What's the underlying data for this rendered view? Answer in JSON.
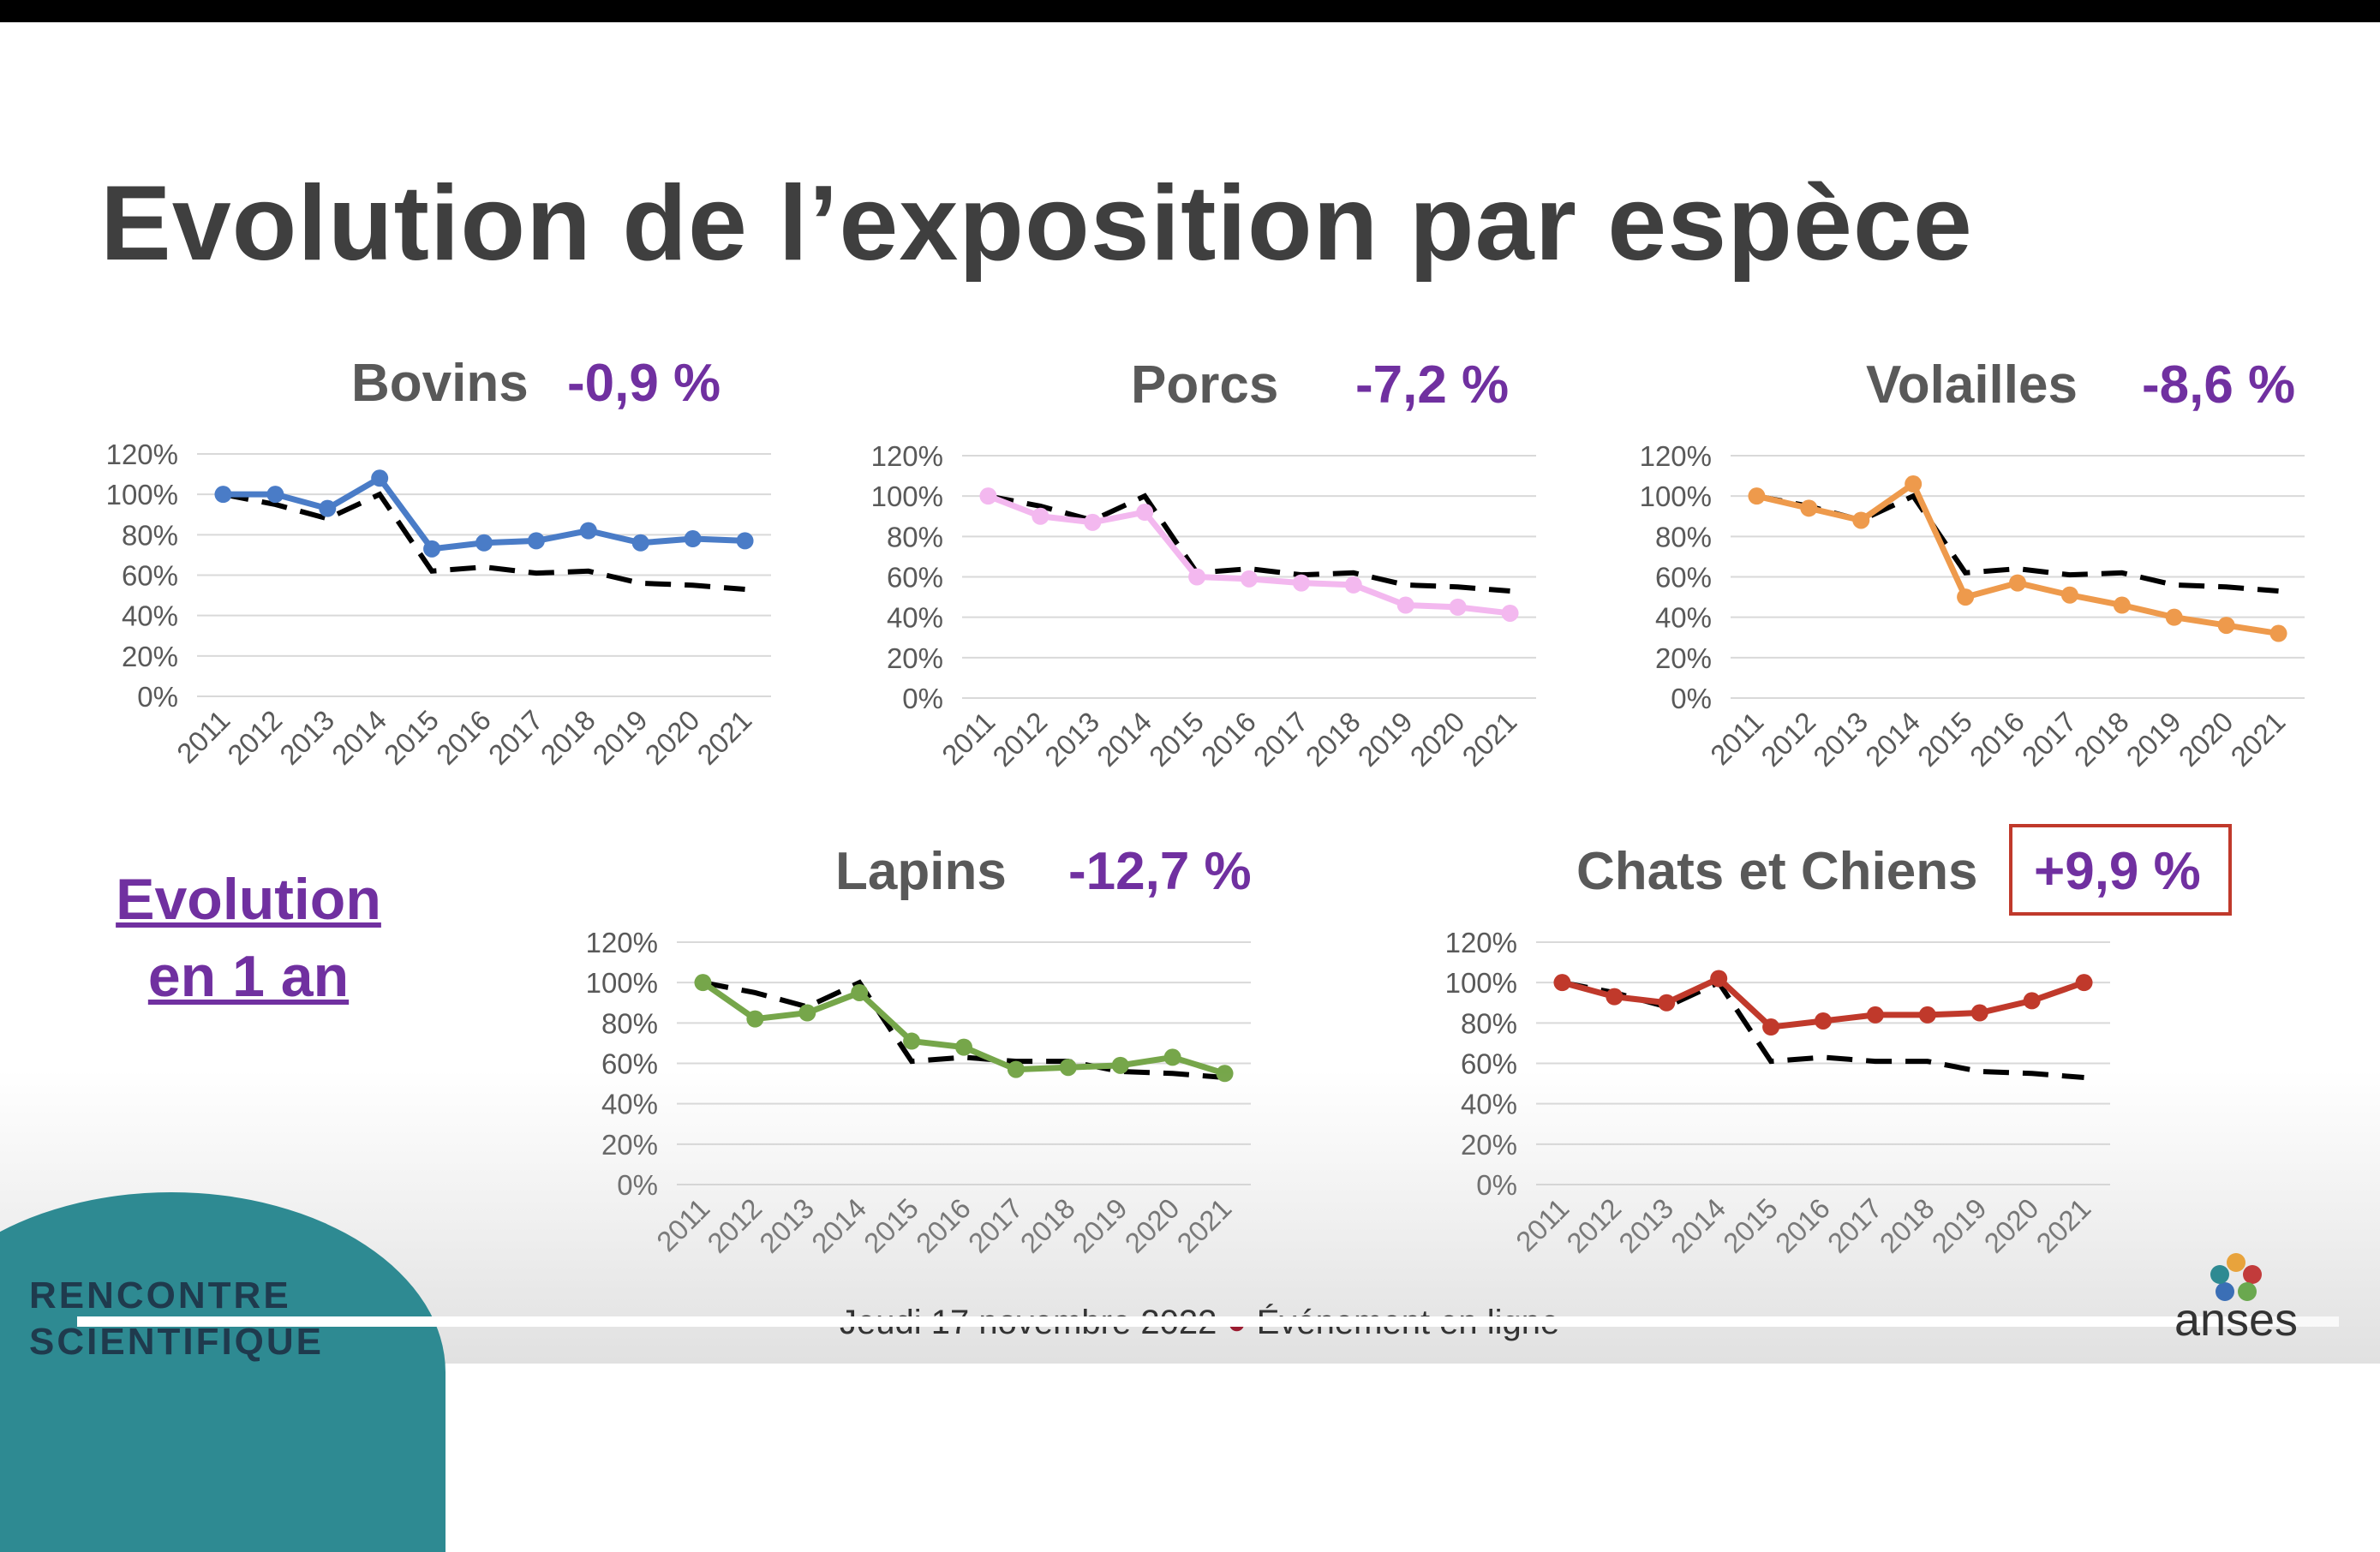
{
  "slide": {
    "title": "Evolution de l’exposition par espèce",
    "evolution_label_line1": "Evolution",
    "evolution_label_line2": "en 1 an"
  },
  "footer": {
    "brand_line1": "RENCONTRE",
    "brand_line2": "SCIENTIFIQUE",
    "event_text_1": "Jeudi 17 novembre 2022",
    "event_text_2": "Événement en ligne",
    "logo_text": "anses",
    "progress": 0.97
  },
  "colors": {
    "title": "#3f3f3f",
    "percent": "#7030a0",
    "reference_line": "#000000",
    "bovins": "#4a7cc7",
    "porcs": "#f3b8ef",
    "volailles": "#ee9a4c",
    "lapins": "#76a64a",
    "chats_chiens": "#c0392b",
    "highlight_box": "#c0392b"
  },
  "chart_data": [
    {
      "type": "line",
      "title": "Bovins",
      "change_label": "-0,9 %",
      "categories": [
        "2011",
        "2012",
        "2013",
        "2014",
        "2015",
        "2016",
        "2017",
        "2018",
        "2019",
        "2020",
        "2021"
      ],
      "y_ticks": [
        "0%",
        "20%",
        "40%",
        "60%",
        "80%",
        "100%",
        "120%"
      ],
      "ylim": [
        0,
        120
      ],
      "grid": true,
      "series": [
        {
          "values": [
            100,
            100,
            93,
            108,
            73,
            76,
            77,
            82,
            76,
            78,
            77
          ],
          "color": "#4a7cc7",
          "style": "solid-marker"
        },
        {
          "values": [
            100,
            95,
            88,
            100,
            62,
            64,
            61,
            62,
            56,
            55,
            53
          ],
          "color": "#000000",
          "style": "dashed"
        }
      ]
    },
    {
      "type": "line",
      "title": "Porcs",
      "change_label": "-7,2 %",
      "categories": [
        "2011",
        "2012",
        "2013",
        "2014",
        "2015",
        "2016",
        "2017",
        "2018",
        "2019",
        "2020",
        "2021"
      ],
      "y_ticks": [
        "0%",
        "20%",
        "40%",
        "60%",
        "80%",
        "100%",
        "120%"
      ],
      "ylim": [
        0,
        120
      ],
      "grid": true,
      "series": [
        {
          "values": [
            100,
            90,
            87,
            92,
            60,
            59,
            57,
            56,
            46,
            45,
            42
          ],
          "color": "#f3b8ef",
          "style": "solid-marker"
        },
        {
          "values": [
            100,
            95,
            88,
            100,
            62,
            64,
            61,
            62,
            56,
            55,
            53
          ],
          "color": "#000000",
          "style": "dashed"
        }
      ]
    },
    {
      "type": "line",
      "title": "Volailles",
      "change_label": "-8,6 %",
      "categories": [
        "2011",
        "2012",
        "2013",
        "2014",
        "2015",
        "2016",
        "2017",
        "2018",
        "2019",
        "2020",
        "2021"
      ],
      "y_ticks": [
        "0%",
        "20%",
        "40%",
        "60%",
        "80%",
        "100%",
        "120%"
      ],
      "ylim": [
        0,
        120
      ],
      "grid": true,
      "series": [
        {
          "values": [
            100,
            94,
            88,
            106,
            50,
            57,
            51,
            46,
            40,
            36,
            32
          ],
          "color": "#ee9a4c",
          "style": "solid-marker"
        },
        {
          "values": [
            100,
            95,
            88,
            100,
            62,
            64,
            61,
            62,
            56,
            55,
            53
          ],
          "color": "#000000",
          "style": "dashed"
        }
      ]
    },
    {
      "type": "line",
      "title": "Lapins",
      "change_label": "-12,7 %",
      "categories": [
        "2011",
        "2012",
        "2013",
        "2014",
        "2015",
        "2016",
        "2017",
        "2018",
        "2019",
        "2020",
        "2021"
      ],
      "y_ticks": [
        "0%",
        "20%",
        "40%",
        "60%",
        "80%",
        "100%",
        "120%"
      ],
      "ylim": [
        0,
        120
      ],
      "grid": true,
      "series": [
        {
          "values": [
            100,
            82,
            85,
            95,
            71,
            68,
            57,
            58,
            59,
            63,
            55
          ],
          "color": "#76a64a",
          "style": "solid-marker"
        },
        {
          "values": [
            100,
            95,
            88,
            100,
            61,
            63,
            61,
            61,
            56,
            55,
            53
          ],
          "color": "#000000",
          "style": "dashed"
        }
      ]
    },
    {
      "type": "line",
      "title": "Chats et Chiens",
      "change_label": "+9,9 %",
      "change_boxed": true,
      "categories": [
        "2011",
        "2012",
        "2013",
        "2014",
        "2015",
        "2016",
        "2017",
        "2018",
        "2019",
        "2020",
        "2021"
      ],
      "y_ticks": [
        "0%",
        "20%",
        "40%",
        "60%",
        "80%",
        "100%",
        "120%"
      ],
      "ylim": [
        0,
        120
      ],
      "grid": true,
      "series": [
        {
          "values": [
            100,
            93,
            90,
            102,
            78,
            81,
            84,
            84,
            85,
            91,
            100
          ],
          "color": "#c0392b",
          "style": "solid-marker"
        },
        {
          "values": [
            100,
            95,
            88,
            100,
            61,
            63,
            61,
            61,
            56,
            55,
            53
          ],
          "color": "#000000",
          "style": "dashed"
        }
      ]
    }
  ]
}
